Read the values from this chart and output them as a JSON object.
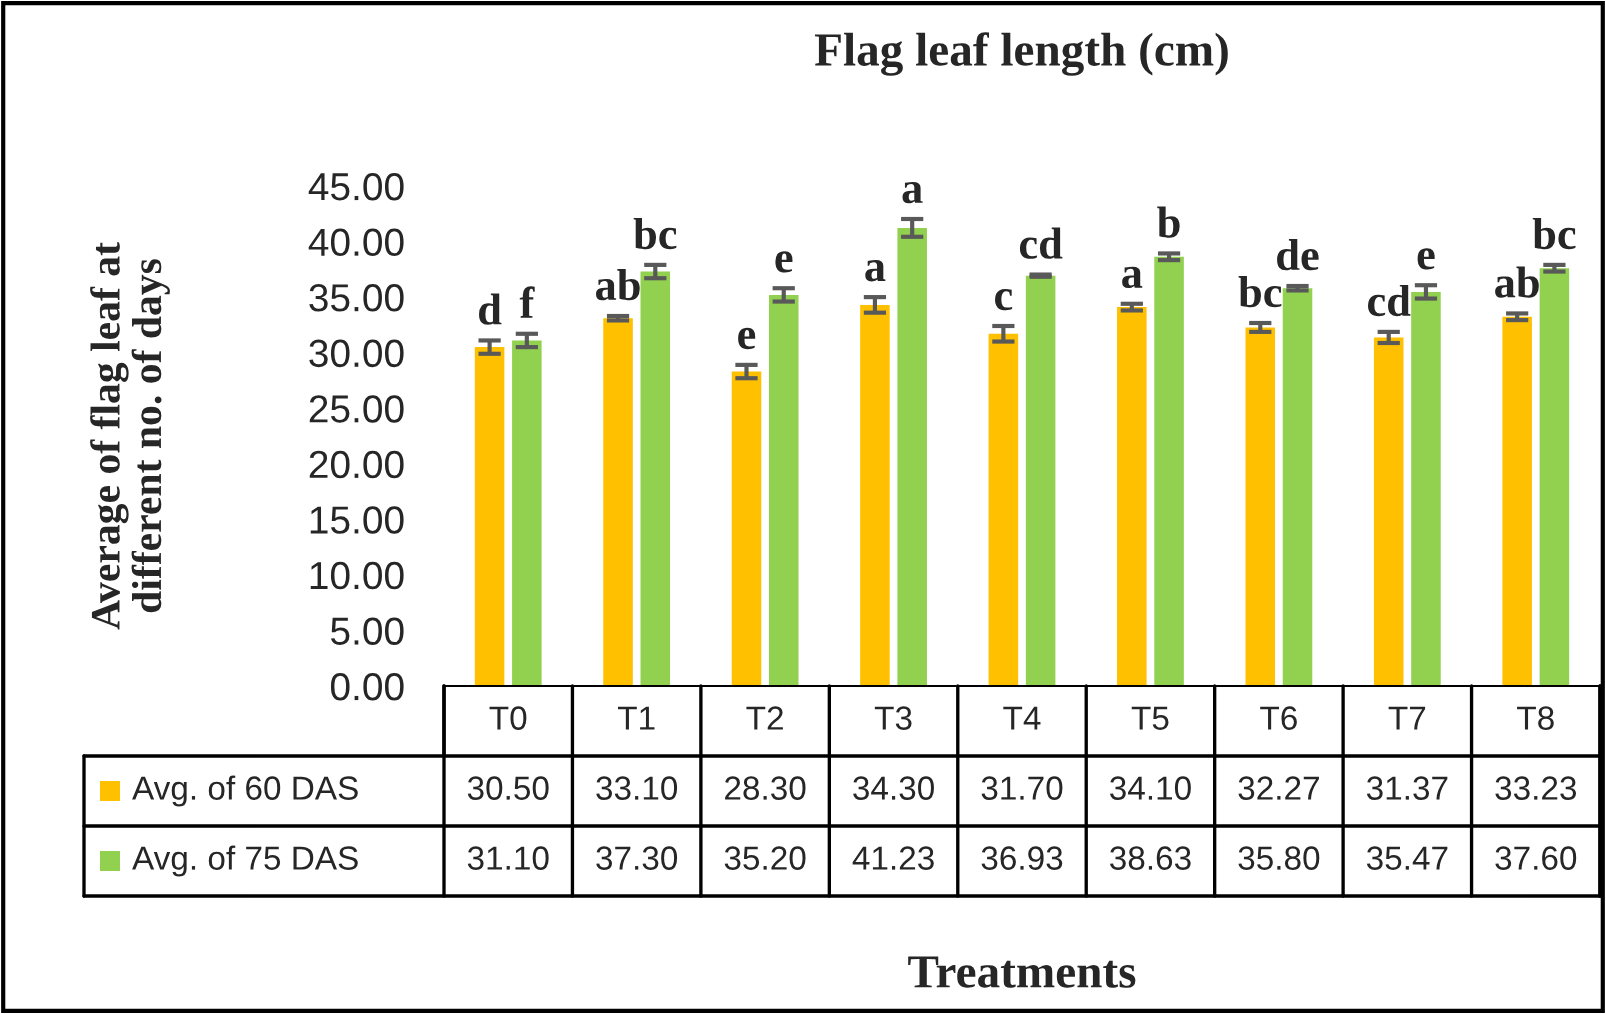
{
  "chart_data": {
    "type": "bar",
    "title": "Flag leaf length (cm)",
    "xlabel": "Treatments",
    "ylabel": "Average of flag leaf at\ndifferent no. of days",
    "categories": [
      "T0",
      "T1",
      "T2",
      "T3",
      "T4",
      "T5",
      "T6",
      "T7",
      "T8"
    ],
    "series": [
      {
        "name": "Avg. of 60 DAS",
        "color": "#ffc000",
        "values": [
          30.5,
          33.1,
          28.3,
          34.3,
          31.7,
          34.1,
          32.27,
          31.37,
          33.23
        ],
        "value_labels": [
          "30.50",
          "33.10",
          "28.30",
          "34.30",
          "31.70",
          "34.10",
          "32.27",
          "31.37",
          "33.23"
        ],
        "errors": [
          0.6,
          0.2,
          0.6,
          0.7,
          0.7,
          0.3,
          0.4,
          0.5,
          0.3
        ]
      },
      {
        "name": "Avg. of 75 DAS",
        "color": "#92d050",
        "values": [
          31.1,
          37.3,
          35.2,
          41.23,
          36.93,
          38.63,
          35.8,
          35.47,
          37.6
        ],
        "value_labels": [
          "31.10",
          "37.30",
          "35.20",
          "41.23",
          "36.93",
          "38.63",
          "35.80",
          "35.47",
          "37.60"
        ],
        "errors": [
          0.6,
          0.6,
          0.6,
          0.8,
          0.1,
          0.3,
          0.2,
          0.6,
          0.3
        ]
      }
    ],
    "ylim": [
      0,
      45
    ],
    "yticks": [
      {
        "value": 0,
        "label": "0.00"
      },
      {
        "value": 5,
        "label": "5.00"
      },
      {
        "value": 10,
        "label": "10.00"
      },
      {
        "value": 15,
        "label": "15.00"
      },
      {
        "value": 20,
        "label": "20.00"
      },
      {
        "value": 25,
        "label": "25.00"
      },
      {
        "value": 30,
        "label": "30.00"
      },
      {
        "value": 35,
        "label": "35.00"
      },
      {
        "value": 40,
        "label": "40.00"
      },
      {
        "value": 45,
        "label": "45.00"
      }
    ],
    "grid": false,
    "legend": "bottom left",
    "annotations": [
      {
        "text": "d",
        "x": "T0",
        "y": 30.5
      },
      {
        "text": "f",
        "x": "T0",
        "y": 31.1
      },
      {
        "text": "ab",
        "x": "T1",
        "y": 33.1
      },
      {
        "text": "bc",
        "x": "T1",
        "y": 37.3
      },
      {
        "text": "e",
        "x": "T2",
        "y": 28.3
      },
      {
        "text": "e",
        "x": "T2",
        "y": 35.2
      },
      {
        "text": "a",
        "x": "T3",
        "y": 34.3
      },
      {
        "text": "a",
        "x": "T3",
        "y": 41.23
      },
      {
        "text": "c",
        "x": "T4",
        "y": 31.7
      },
      {
        "text": "cd",
        "x": "T4",
        "y": 36.93
      },
      {
        "text": "a",
        "x": "T5",
        "y": 34.1
      },
      {
        "text": "b",
        "x": "T5",
        "y": 38.63
      },
      {
        "text": "bc",
        "x": "T6",
        "y": 32.27
      },
      {
        "text": "de",
        "x": "T6",
        "y": 35.8
      },
      {
        "text": "cd",
        "x": "T7",
        "y": 31.37
      },
      {
        "text": "e",
        "x": "T7",
        "y": 35.47
      },
      {
        "text": "ab",
        "x": "T8",
        "y": 33.23
      },
      {
        "text": "bc",
        "x": "T8",
        "y": 37.6
      }
    ]
  }
}
